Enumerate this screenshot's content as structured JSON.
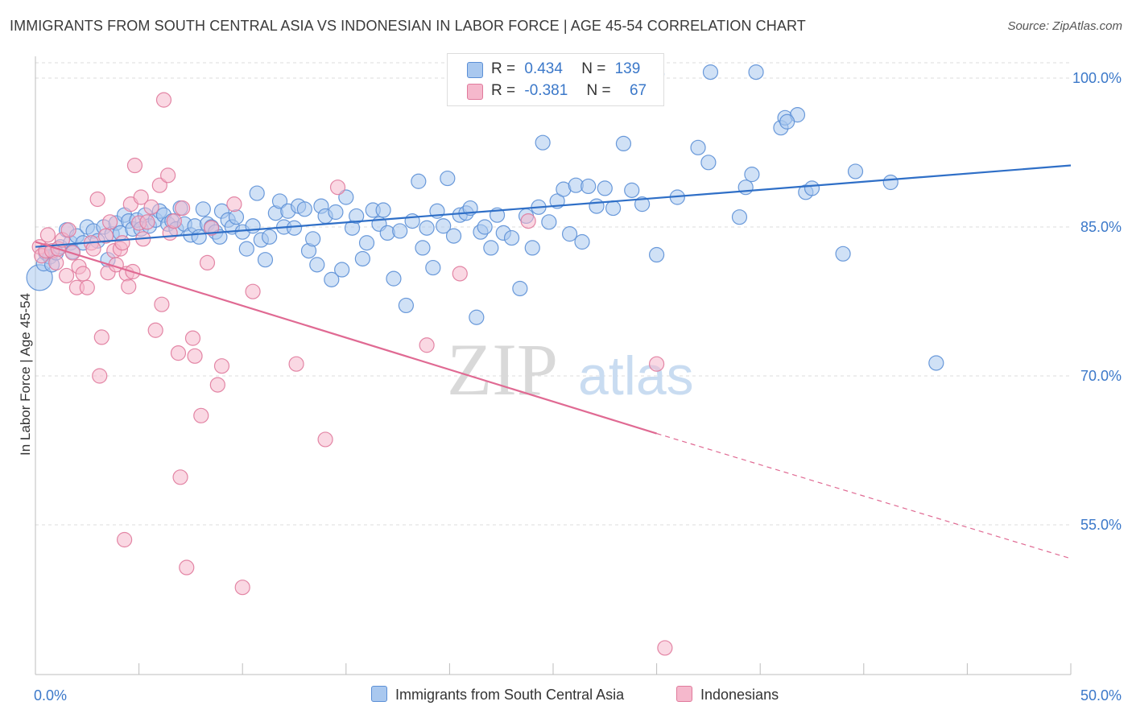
{
  "header": {
    "title": "IMMIGRANTS FROM SOUTH CENTRAL ASIA VS INDONESIAN IN LABOR FORCE | AGE 45-54 CORRELATION CHART",
    "source": "Source: ZipAtlas.com"
  },
  "watermark": {
    "zip": "ZIP",
    "atlas": "atlas"
  },
  "legend": {
    "rows": [
      {
        "r_label": "R =",
        "r_value": "0.434",
        "n_label": "N =",
        "n_value": "139",
        "color": "#a9c8ef",
        "stroke": "#5b8fd6"
      },
      {
        "r_label": "R =",
        "r_value": "-0.381",
        "n_label": "N =",
        "n_value": "67",
        "color": "#f5b8cc",
        "stroke": "#e07a9c"
      }
    ]
  },
  "bottom_legend": [
    {
      "label": "Immigrants from South Central Asia",
      "color": "#a9c8ef",
      "stroke": "#5b8fd6"
    },
    {
      "label": "Indonesians",
      "color": "#f5b8cc",
      "stroke": "#e07a9c"
    }
  ],
  "chart_data": {
    "type": "scatter",
    "title": "IMMIGRANTS FROM SOUTH CENTRAL ASIA VS INDONESIAN IN LABOR FORCE | AGE 45-54 CORRELATION CHART",
    "xlabel": "",
    "ylabel": "In Labor Force | Age 45-54",
    "xlim": [
      0,
      50
    ],
    "ylim": [
      40,
      102
    ],
    "x_tick_labels": [
      "0.0%",
      "50.0%"
    ],
    "y_ticks": [
      55,
      70,
      85,
      100
    ],
    "y_tick_labels": [
      "55.0%",
      "70.0%",
      "85.0%",
      "100.0%"
    ],
    "grid": "horizontal dashed",
    "legend_position": "top-center",
    "series": [
      {
        "name": "Immigrants from South Central Asia",
        "color": "#5b8fd6",
        "fill": "#a9c8ef",
        "r": 0.434,
        "n": 139,
        "trend": {
          "x": [
            0,
            50
          ],
          "y": [
            83.0,
            91.2
          ]
        },
        "points": [
          [
            0.2,
            79.9
          ],
          [
            0.4,
            81.3
          ],
          [
            0.5,
            82.4
          ],
          [
            0.7,
            82.0
          ],
          [
            0.8,
            81.2
          ],
          [
            1.0,
            82.4
          ],
          [
            1.2,
            83.0
          ],
          [
            1.5,
            84.7
          ],
          [
            1.7,
            83.4
          ],
          [
            1.8,
            82.5
          ],
          [
            2.0,
            84.1
          ],
          [
            2.3,
            83.4
          ],
          [
            2.5,
            85.0
          ],
          [
            2.8,
            84.6
          ],
          [
            3.0,
            83.6
          ],
          [
            3.3,
            85.0
          ],
          [
            3.5,
            81.7
          ],
          [
            3.7,
            84.3
          ],
          [
            3.9,
            85.4
          ],
          [
            4.1,
            84.4
          ],
          [
            4.3,
            86.2
          ],
          [
            4.5,
            85.6
          ],
          [
            4.7,
            84.8
          ],
          [
            4.9,
            85.7
          ],
          [
            5.1,
            84.8
          ],
          [
            5.3,
            86.2
          ],
          [
            5.5,
            85.1
          ],
          [
            5.8,
            85.7
          ],
          [
            6.0,
            86.6
          ],
          [
            6.2,
            86.2
          ],
          [
            6.4,
            85.3
          ],
          [
            6.6,
            85.6
          ],
          [
            6.8,
            84.8
          ],
          [
            7.0,
            86.9
          ],
          [
            7.2,
            85.3
          ],
          [
            7.5,
            84.2
          ],
          [
            7.7,
            85.1
          ],
          [
            7.9,
            84.0
          ],
          [
            8.1,
            86.8
          ],
          [
            8.3,
            85.3
          ],
          [
            8.5,
            85.0
          ],
          [
            8.7,
            84.5
          ],
          [
            8.9,
            84.0
          ],
          [
            9.0,
            86.6
          ],
          [
            9.3,
            85.7
          ],
          [
            9.5,
            85.0
          ],
          [
            9.7,
            86.0
          ],
          [
            10.0,
            84.5
          ],
          [
            10.2,
            82.8
          ],
          [
            10.5,
            85.1
          ],
          [
            10.7,
            88.4
          ],
          [
            10.9,
            83.7
          ],
          [
            11.1,
            81.7
          ],
          [
            11.3,
            84.0
          ],
          [
            11.6,
            86.4
          ],
          [
            11.8,
            87.6
          ],
          [
            12.0,
            85.0
          ],
          [
            12.2,
            86.6
          ],
          [
            12.5,
            84.9
          ],
          [
            12.7,
            87.1
          ],
          [
            13.0,
            86.8
          ],
          [
            13.2,
            82.6
          ],
          [
            13.4,
            83.8
          ],
          [
            13.6,
            81.2
          ],
          [
            13.8,
            87.1
          ],
          [
            14.0,
            86.1
          ],
          [
            14.3,
            79.7
          ],
          [
            14.5,
            86.5
          ],
          [
            14.8,
            80.7
          ],
          [
            15.0,
            88.0
          ],
          [
            15.3,
            84.9
          ],
          [
            15.5,
            86.1
          ],
          [
            15.8,
            81.8
          ],
          [
            16.0,
            83.4
          ],
          [
            16.3,
            86.7
          ],
          [
            16.6,
            85.3
          ],
          [
            16.8,
            86.7
          ],
          [
            17.0,
            84.4
          ],
          [
            17.3,
            79.8
          ],
          [
            17.6,
            84.6
          ],
          [
            17.9,
            77.1
          ],
          [
            18.2,
            85.6
          ],
          [
            18.5,
            89.6
          ],
          [
            18.7,
            82.9
          ],
          [
            18.9,
            84.9
          ],
          [
            19.2,
            80.9
          ],
          [
            19.4,
            86.6
          ],
          [
            19.7,
            85.1
          ],
          [
            19.9,
            89.9
          ],
          [
            20.2,
            84.1
          ],
          [
            20.5,
            86.2
          ],
          [
            20.8,
            86.4
          ],
          [
            21.0,
            86.9
          ],
          [
            21.3,
            75.9
          ],
          [
            21.5,
            84.5
          ],
          [
            21.7,
            85.0
          ],
          [
            22.0,
            82.9
          ],
          [
            22.3,
            86.2
          ],
          [
            22.6,
            84.4
          ],
          [
            23.0,
            83.9
          ],
          [
            23.4,
            78.8
          ],
          [
            23.7,
            86.1
          ],
          [
            24.0,
            82.9
          ],
          [
            24.3,
            87.0
          ],
          [
            24.5,
            93.5
          ],
          [
            24.8,
            85.5
          ],
          [
            25.2,
            87.6
          ],
          [
            25.5,
            88.8
          ],
          [
            25.8,
            84.3
          ],
          [
            26.1,
            89.2
          ],
          [
            26.4,
            83.5
          ],
          [
            26.7,
            89.1
          ],
          [
            27.1,
            87.1
          ],
          [
            27.5,
            88.9
          ],
          [
            27.9,
            86.9
          ],
          [
            28.4,
            93.4
          ],
          [
            28.8,
            88.7
          ],
          [
            29.3,
            87.3
          ],
          [
            30.0,
            82.2
          ],
          [
            31.0,
            88.0
          ],
          [
            32.0,
            93.0
          ],
          [
            32.5,
            91.5
          ],
          [
            34.0,
            86.0
          ],
          [
            34.3,
            89.0
          ],
          [
            34.6,
            90.3
          ],
          [
            36.0,
            95.0
          ],
          [
            36.2,
            96.0
          ],
          [
            36.8,
            96.3
          ],
          [
            37.2,
            88.5
          ],
          [
            37.5,
            88.9
          ],
          [
            39.0,
            82.3
          ],
          [
            39.6,
            90.6
          ],
          [
            41.3,
            89.5
          ],
          [
            43.5,
            71.3
          ],
          [
            29.6,
            100.6
          ],
          [
            30.0,
            100.4
          ],
          [
            32.6,
            100.6
          ],
          [
            34.8,
            100.6
          ],
          [
            36.3,
            95.6
          ]
        ]
      },
      {
        "name": "Indonesians",
        "color": "#e07a9c",
        "fill": "#f5b8cc",
        "r": -0.381,
        "n": 67,
        "trend": {
          "x": [
            0,
            30
          ],
          "y": [
            83.5,
            64.2
          ],
          "dashed_x": [
            30,
            50
          ],
          "dashed_y": [
            64.2,
            51.6
          ]
        },
        "points": [
          [
            0.2,
            83.0
          ],
          [
            0.3,
            82.1
          ],
          [
            0.5,
            82.6
          ],
          [
            0.6,
            84.2
          ],
          [
            0.8,
            82.6
          ],
          [
            1.0,
            81.4
          ],
          [
            1.1,
            82.8
          ],
          [
            1.3,
            83.7
          ],
          [
            1.5,
            80.1
          ],
          [
            1.6,
            84.7
          ],
          [
            1.8,
            82.4
          ],
          [
            2.0,
            78.9
          ],
          [
            2.1,
            81.0
          ],
          [
            2.3,
            80.3
          ],
          [
            2.5,
            78.9
          ],
          [
            2.7,
            83.4
          ],
          [
            2.8,
            82.8
          ],
          [
            3.0,
            87.8
          ],
          [
            3.1,
            70.0
          ],
          [
            3.2,
            73.9
          ],
          [
            3.4,
            84.1
          ],
          [
            3.5,
            80.4
          ],
          [
            3.6,
            85.5
          ],
          [
            3.8,
            82.6
          ],
          [
            3.9,
            81.2
          ],
          [
            4.1,
            82.8
          ],
          [
            4.2,
            83.4
          ],
          [
            4.3,
            53.5
          ],
          [
            4.4,
            80.3
          ],
          [
            4.5,
            79.0
          ],
          [
            4.6,
            87.3
          ],
          [
            4.7,
            80.5
          ],
          [
            4.8,
            91.2
          ],
          [
            5.0,
            85.4
          ],
          [
            5.1,
            88.0
          ],
          [
            5.2,
            83.8
          ],
          [
            5.4,
            85.5
          ],
          [
            5.6,
            87.0
          ],
          [
            5.8,
            74.6
          ],
          [
            6.0,
            89.2
          ],
          [
            6.1,
            77.2
          ],
          [
            6.2,
            97.8
          ],
          [
            6.4,
            90.2
          ],
          [
            6.5,
            84.4
          ],
          [
            6.7,
            85.6
          ],
          [
            6.9,
            72.3
          ],
          [
            7.0,
            59.8
          ],
          [
            7.1,
            86.9
          ],
          [
            7.3,
            50.7
          ],
          [
            7.6,
            73.8
          ],
          [
            7.7,
            72.0
          ],
          [
            8.0,
            66.0
          ],
          [
            8.3,
            81.4
          ],
          [
            8.5,
            84.9
          ],
          [
            8.8,
            69.1
          ],
          [
            9.0,
            71.0
          ],
          [
            9.6,
            87.3
          ],
          [
            10.0,
            48.7
          ],
          [
            10.5,
            78.5
          ],
          [
            12.6,
            71.2
          ],
          [
            14.0,
            63.6
          ],
          [
            14.6,
            89.0
          ],
          [
            18.9,
            73.1
          ],
          [
            20.5,
            80.3
          ],
          [
            23.8,
            85.6
          ],
          [
            30.0,
            71.2
          ],
          [
            30.4,
            42.6
          ]
        ]
      }
    ]
  }
}
